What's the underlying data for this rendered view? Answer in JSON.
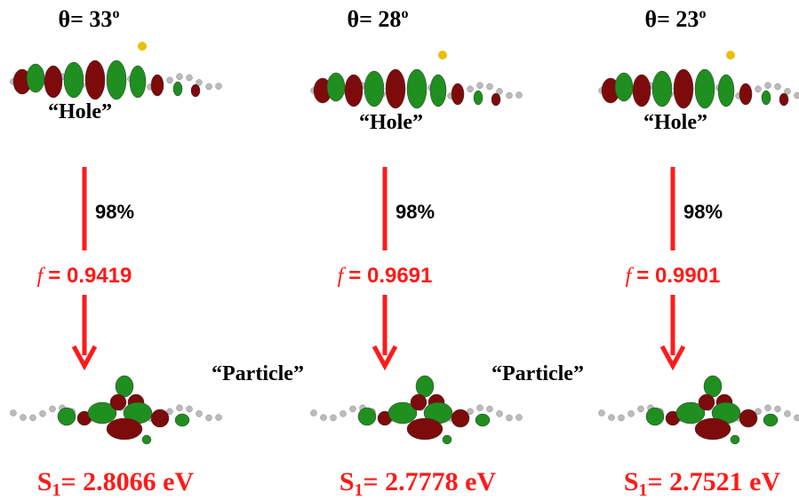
{
  "panels": [
    {
      "angle": "θ= 33",
      "angle_unit": "o",
      "hole": "“Hole”",
      "contribution": "98%",
      "f_symbol": "f",
      "f_value": "= 0.9419",
      "particle": "“Particle”",
      "state": "S",
      "state_sub": "1",
      "energy": "= 2.8066 eV"
    },
    {
      "angle": "θ= 28",
      "angle_unit": "o",
      "hole": "“Hole”",
      "contribution": "98%",
      "f_symbol": "f",
      "f_value": "= 0.9691",
      "particle": "“Particle”",
      "state": "S",
      "state_sub": "1",
      "energy": "= 2.7778 eV"
    },
    {
      "angle": "θ= 23",
      "angle_unit": "o",
      "hole": "“Hole”",
      "contribution": "98%",
      "f_symbol": "f",
      "f_value": "= 0.9901",
      "state": "S",
      "state_sub": "1",
      "energy": "= 2.7521 eV"
    }
  ]
}
